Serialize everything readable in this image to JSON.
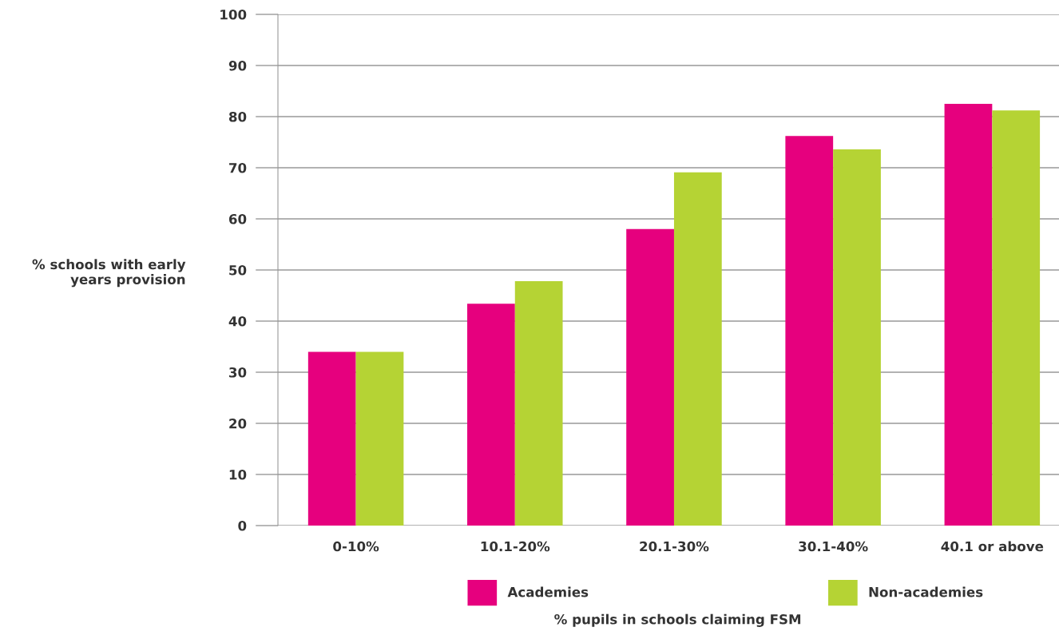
{
  "chart_data": {
    "type": "bar",
    "annotations": [
      "% pupils in schools claiming FSM"
    ],
    "ylabel": "% schools with early\nyears provision",
    "categories": [
      "0-10%",
      "10.1-20%",
      "20.1-30%",
      "30.1-40%",
      "40.1 or above"
    ],
    "series": [
      {
        "name": "Academies",
        "color": "#e6007e",
        "values": [
          34,
          43.4,
          58,
          76.2,
          82.5
        ]
      },
      {
        "name": "Non-academies",
        "color": "#b5d334",
        "values": [
          34,
          47.8,
          69.1,
          73.6,
          81.2
        ]
      }
    ],
    "ylim": [
      0,
      100
    ],
    "yticks": [
      0,
      10,
      20,
      30,
      40,
      50,
      60,
      70,
      80,
      90,
      100
    ],
    "grid": "y",
    "legend": "bottom"
  }
}
